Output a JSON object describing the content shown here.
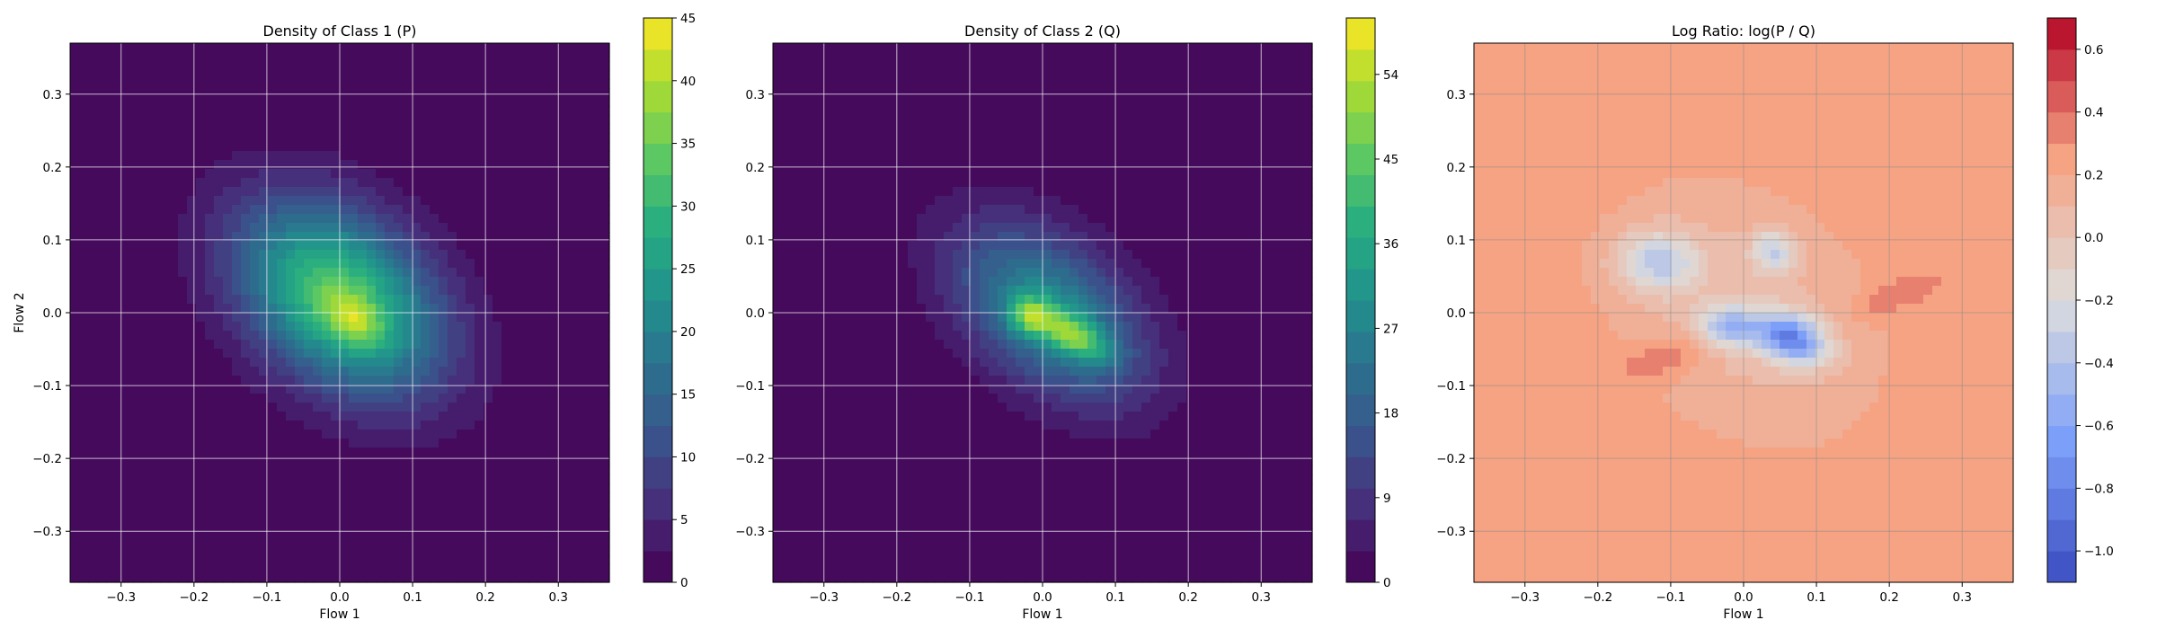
{
  "chart_data": [
    {
      "type": "heatmap",
      "title": "Density of Class 1 (P)",
      "xlabel": "Flow 1",
      "ylabel": "Flow 2",
      "xlim": [
        -0.37,
        0.37
      ],
      "ylim": [
        -0.37,
        0.37
      ],
      "xticks": [
        -0.3,
        -0.2,
        -0.1,
        0.0,
        0.1,
        0.2,
        0.3
      ],
      "xtick_labels": [
        "−0.3",
        "−0.2",
        "−0.1",
        "0.0",
        "0.1",
        "0.2",
        "0.3"
      ],
      "yticks": [
        -0.3,
        -0.2,
        -0.1,
        0.0,
        0.1,
        0.2,
        0.3
      ],
      "ytick_labels": [
        "−0.3",
        "−0.2",
        "−0.1",
        "0.0",
        "0.1",
        "0.2",
        "0.3"
      ],
      "grid": true,
      "colormap": "viridis",
      "colorbar": {
        "range": [
          0,
          45
        ],
        "ticks": [
          0,
          5,
          10,
          15,
          20,
          25,
          30,
          35,
          40,
          45
        ],
        "tick_labels": [
          "0",
          "5",
          "10",
          "15",
          "20",
          "25",
          "30",
          "35",
          "40",
          "45"
        ]
      },
      "blobs": [
        {
          "cx": 0.0,
          "cy": 0.02,
          "sx": 0.11,
          "sy": 0.075,
          "rot_deg": -40,
          "amp": 34
        },
        {
          "cx": 0.02,
          "cy": -0.01,
          "sx": 0.03,
          "sy": 0.02,
          "rot_deg": -35,
          "amp": 11
        }
      ]
    },
    {
      "type": "heatmap",
      "title": "Density of Class 2 (Q)",
      "xlabel": "Flow 1",
      "ylabel": "",
      "xlim": [
        -0.37,
        0.37
      ],
      "ylim": [
        -0.37,
        0.37
      ],
      "xticks": [
        -0.3,
        -0.2,
        -0.1,
        0.0,
        0.1,
        0.2,
        0.3
      ],
      "xtick_labels": [
        "−0.3",
        "−0.2",
        "−0.1",
        "0.0",
        "0.1",
        "0.2",
        "0.3"
      ],
      "yticks": [
        -0.3,
        -0.2,
        -0.1,
        0.0,
        0.1,
        0.2,
        0.3
      ],
      "ytick_labels": [
        "−0.3",
        "−0.2",
        "−0.1",
        "0.0",
        "0.1",
        "0.2",
        "0.3"
      ],
      "grid": true,
      "colormap": "viridis",
      "colorbar": {
        "range": [
          0,
          60
        ],
        "ticks": [
          0,
          9,
          18,
          27,
          36,
          45,
          54
        ],
        "tick_labels": [
          "0",
          "9",
          "18",
          "27",
          "36",
          "45",
          "54"
        ]
      },
      "blobs": [
        {
          "cx": 0.01,
          "cy": 0.0,
          "sx": 0.105,
          "sy": 0.065,
          "rot_deg": -40,
          "amp": 30
        },
        {
          "cx": 0.04,
          "cy": -0.03,
          "sx": 0.04,
          "sy": 0.018,
          "rot_deg": -30,
          "amp": 26
        },
        {
          "cx": -0.02,
          "cy": -0.005,
          "sx": 0.02,
          "sy": 0.018,
          "rot_deg": 0,
          "amp": 20
        }
      ]
    },
    {
      "type": "heatmap",
      "title": "Log Ratio: log(P / Q)",
      "xlabel": "Flow 1",
      "ylabel": "",
      "xlim": [
        -0.37,
        0.37
      ],
      "ylim": [
        -0.37,
        0.37
      ],
      "xticks": [
        -0.3,
        -0.2,
        -0.1,
        0.0,
        0.1,
        0.2,
        0.3
      ],
      "xtick_labels": [
        "−0.3",
        "−0.2",
        "−0.1",
        "0.0",
        "0.1",
        "0.2",
        "0.3"
      ],
      "yticks": [
        -0.3,
        -0.2,
        -0.1,
        0.0,
        0.1,
        0.2,
        0.3
      ],
      "ytick_labels": [
        "−0.3",
        "−0.2",
        "−0.1",
        "0.0",
        "0.1",
        "0.2",
        "0.3"
      ],
      "grid": true,
      "colormap": "coolwarm",
      "colorbar": {
        "range": [
          -1.1,
          0.7
        ],
        "ticks": [
          -1.0,
          -0.8,
          -0.6,
          -0.4,
          -0.2,
          0.0,
          0.2,
          0.4,
          0.6
        ],
        "tick_labels": [
          "−1.0",
          "−0.8",
          "−0.6",
          "−0.4",
          "−0.2",
          "0.0",
          "0.2",
          "0.4",
          "0.6"
        ]
      },
      "base_value": 0.3,
      "blobs": [
        {
          "cx": 0.0,
          "cy": 0.0,
          "sx": 0.16,
          "sy": 0.12,
          "rot_deg": -40,
          "amp": -0.25
        },
        {
          "cx": 0.065,
          "cy": -0.035,
          "sx": 0.035,
          "sy": 0.022,
          "rot_deg": -20,
          "amp": -0.9
        },
        {
          "cx": -0.02,
          "cy": -0.02,
          "sx": 0.03,
          "sy": 0.02,
          "rot_deg": 0,
          "amp": -0.55
        },
        {
          "cx": -0.12,
          "cy": 0.07,
          "sx": 0.04,
          "sy": 0.03,
          "rot_deg": 0,
          "amp": -0.5
        },
        {
          "cx": 0.04,
          "cy": 0.085,
          "sx": 0.02,
          "sy": 0.02,
          "rot_deg": 0,
          "amp": -0.45
        },
        {
          "cx": -0.1,
          "cy": -0.06,
          "sx": 0.05,
          "sy": 0.02,
          "rot_deg": 15,
          "amp": 0.2
        },
        {
          "cx": 0.2,
          "cy": 0.02,
          "sx": 0.04,
          "sy": 0.015,
          "rot_deg": 20,
          "amp": 0.15
        }
      ]
    }
  ]
}
